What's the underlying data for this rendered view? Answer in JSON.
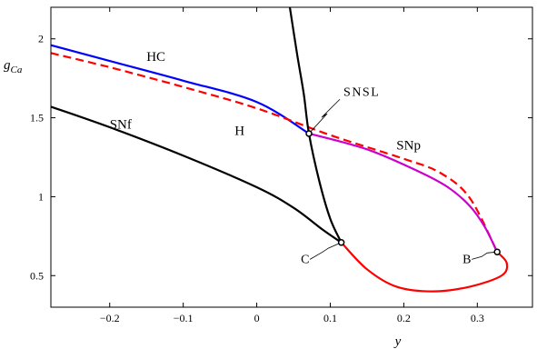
{
  "chart_data": {
    "type": "line",
    "title": "",
    "xlabel": "y",
    "ylabel": "g_Ca",
    "ylabel_main": "g",
    "ylabel_sub": "Ca",
    "xlim": [
      -0.28,
      0.375
    ],
    "ylim": [
      0.3,
      2.2
    ],
    "xticks": [
      -0.2,
      -0.1,
      0,
      0.1,
      0.2,
      0.3
    ],
    "xtick_labels": [
      "−0.2",
      "−0.1",
      "0",
      "0.1",
      "0.2",
      "0.3"
    ],
    "yticks": [
      0.5,
      1,
      1.5,
      2
    ],
    "ytick_labels": [
      "0.5",
      "1",
      "1.5",
      "2"
    ],
    "grid": false,
    "series": [
      {
        "name": "HC",
        "color": "#0000ff",
        "dashed": false,
        "points": [
          [
            -0.28,
            1.96
          ],
          [
            -0.2,
            1.86
          ],
          [
            -0.1,
            1.735
          ],
          [
            0.0,
            1.6
          ],
          [
            0.071,
            1.4
          ]
        ]
      },
      {
        "name": "H",
        "color": "#ff0000",
        "dashed": true,
        "points": [
          [
            -0.28,
            1.91
          ],
          [
            -0.2,
            1.82
          ],
          [
            -0.1,
            1.695
          ],
          [
            0.0,
            1.56
          ],
          [
            0.1,
            1.39
          ],
          [
            0.2,
            1.24
          ],
          [
            0.25,
            1.15
          ],
          [
            0.29,
            0.99
          ],
          [
            0.327,
            0.65
          ]
        ]
      },
      {
        "name": "SNp",
        "color": "#cc00cc",
        "dashed": false,
        "points": [
          [
            0.071,
            1.4
          ],
          [
            0.15,
            1.3
          ],
          [
            0.22,
            1.16
          ],
          [
            0.26,
            1.06
          ],
          [
            0.29,
            0.94
          ],
          [
            0.31,
            0.81
          ],
          [
            0.327,
            0.65
          ]
        ]
      },
      {
        "name": "SNf",
        "color": "#000000",
        "dashed": false,
        "points": [
          [
            -0.28,
            1.57
          ],
          [
            -0.2,
            1.44
          ],
          [
            -0.1,
            1.26
          ],
          [
            0.0,
            1.06
          ],
          [
            0.05,
            0.93
          ],
          [
            0.09,
            0.79
          ],
          [
            0.115,
            0.71
          ]
        ]
      },
      {
        "name": "SNSL",
        "color": "#000000",
        "dashed": false,
        "points": [
          [
            0.045,
            2.2
          ],
          [
            0.055,
            1.9
          ],
          [
            0.064,
            1.65
          ],
          [
            0.071,
            1.4
          ],
          [
            0.085,
            1.1
          ],
          [
            0.1,
            0.86
          ],
          [
            0.115,
            0.71
          ]
        ]
      },
      {
        "name": "",
        "color": "#ff0000",
        "dashed": false,
        "points": [
          [
            0.115,
            0.71
          ],
          [
            0.15,
            0.54
          ],
          [
            0.19,
            0.43
          ],
          [
            0.24,
            0.4
          ],
          [
            0.29,
            0.43
          ],
          [
            0.333,
            0.5
          ],
          [
            0.34,
            0.58
          ],
          [
            0.327,
            0.65
          ]
        ]
      }
    ],
    "curve_labels": [
      {
        "text": "HC",
        "x": -0.15,
        "y": 1.86
      },
      {
        "text": "H",
        "x": -0.03,
        "y": 1.39
      },
      {
        "text": "SNf",
        "x": -0.2,
        "y": 1.43
      },
      {
        "text": "SNp",
        "x": 0.19,
        "y": 1.3
      }
    ],
    "special_points": [
      {
        "label": "SNSL",
        "x": 0.071,
        "y": 1.4,
        "text_x": 0.118,
        "text_y": 1.64
      },
      {
        "label": "C",
        "x": 0.115,
        "y": 0.71,
        "text_x": 0.06,
        "text_y": 0.58
      },
      {
        "label": "B",
        "x": 0.327,
        "y": 0.65,
        "text_x": 0.28,
        "text_y": 0.58
      }
    ]
  }
}
